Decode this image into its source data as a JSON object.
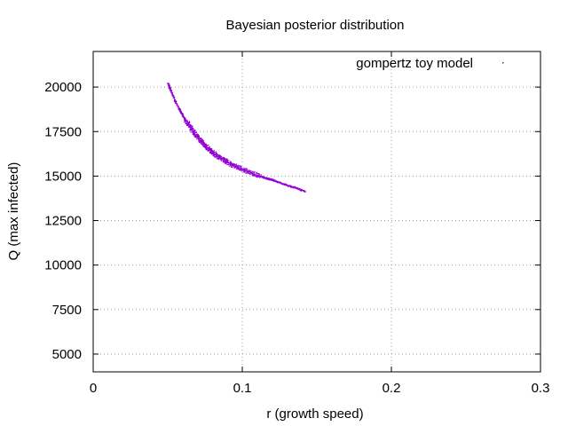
{
  "chart_data": {
    "type": "scatter",
    "title": "Bayesian posterior distribution",
    "xlabel": "r (growth speed)",
    "ylabel": "Q (max infected)",
    "xlim": [
      0,
      0.3
    ],
    "ylim": [
      4000,
      22000
    ],
    "xticks": [
      0,
      0.1,
      0.2,
      0.3
    ],
    "xtick_labels": [
      "0",
      "0.1",
      "0.2",
      "0.3"
    ],
    "yticks": [
      5000,
      7500,
      10000,
      12500,
      15000,
      17500,
      20000
    ],
    "ytick_labels": [
      "5000",
      "7500",
      "10000",
      "12500",
      "15000",
      "17500",
      "20000"
    ],
    "grid": true,
    "legend_position": "top-right",
    "series": [
      {
        "name": "gompertz toy model",
        "color": "#9400d3",
        "points": [
          [
            0.05,
            20200
          ],
          [
            0.052,
            19800
          ],
          [
            0.055,
            19200
          ],
          [
            0.058,
            18700
          ],
          [
            0.06,
            18400
          ],
          [
            0.062,
            18100
          ],
          [
            0.064,
            17900
          ],
          [
            0.066,
            17650
          ],
          [
            0.068,
            17400
          ],
          [
            0.07,
            17200
          ],
          [
            0.072,
            17000
          ],
          [
            0.074,
            16800
          ],
          [
            0.076,
            16650
          ],
          [
            0.078,
            16480
          ],
          [
            0.08,
            16350
          ],
          [
            0.082,
            16200
          ],
          [
            0.085,
            16050
          ],
          [
            0.088,
            15900
          ],
          [
            0.09,
            15800
          ],
          [
            0.093,
            15650
          ],
          [
            0.096,
            15550
          ],
          [
            0.1,
            15400
          ],
          [
            0.104,
            15250
          ],
          [
            0.108,
            15150
          ],
          [
            0.112,
            15000
          ],
          [
            0.116,
            14900
          ],
          [
            0.12,
            14800
          ],
          [
            0.125,
            14650
          ],
          [
            0.13,
            14500
          ],
          [
            0.136,
            14350
          ],
          [
            0.142,
            14150
          ]
        ]
      }
    ]
  }
}
